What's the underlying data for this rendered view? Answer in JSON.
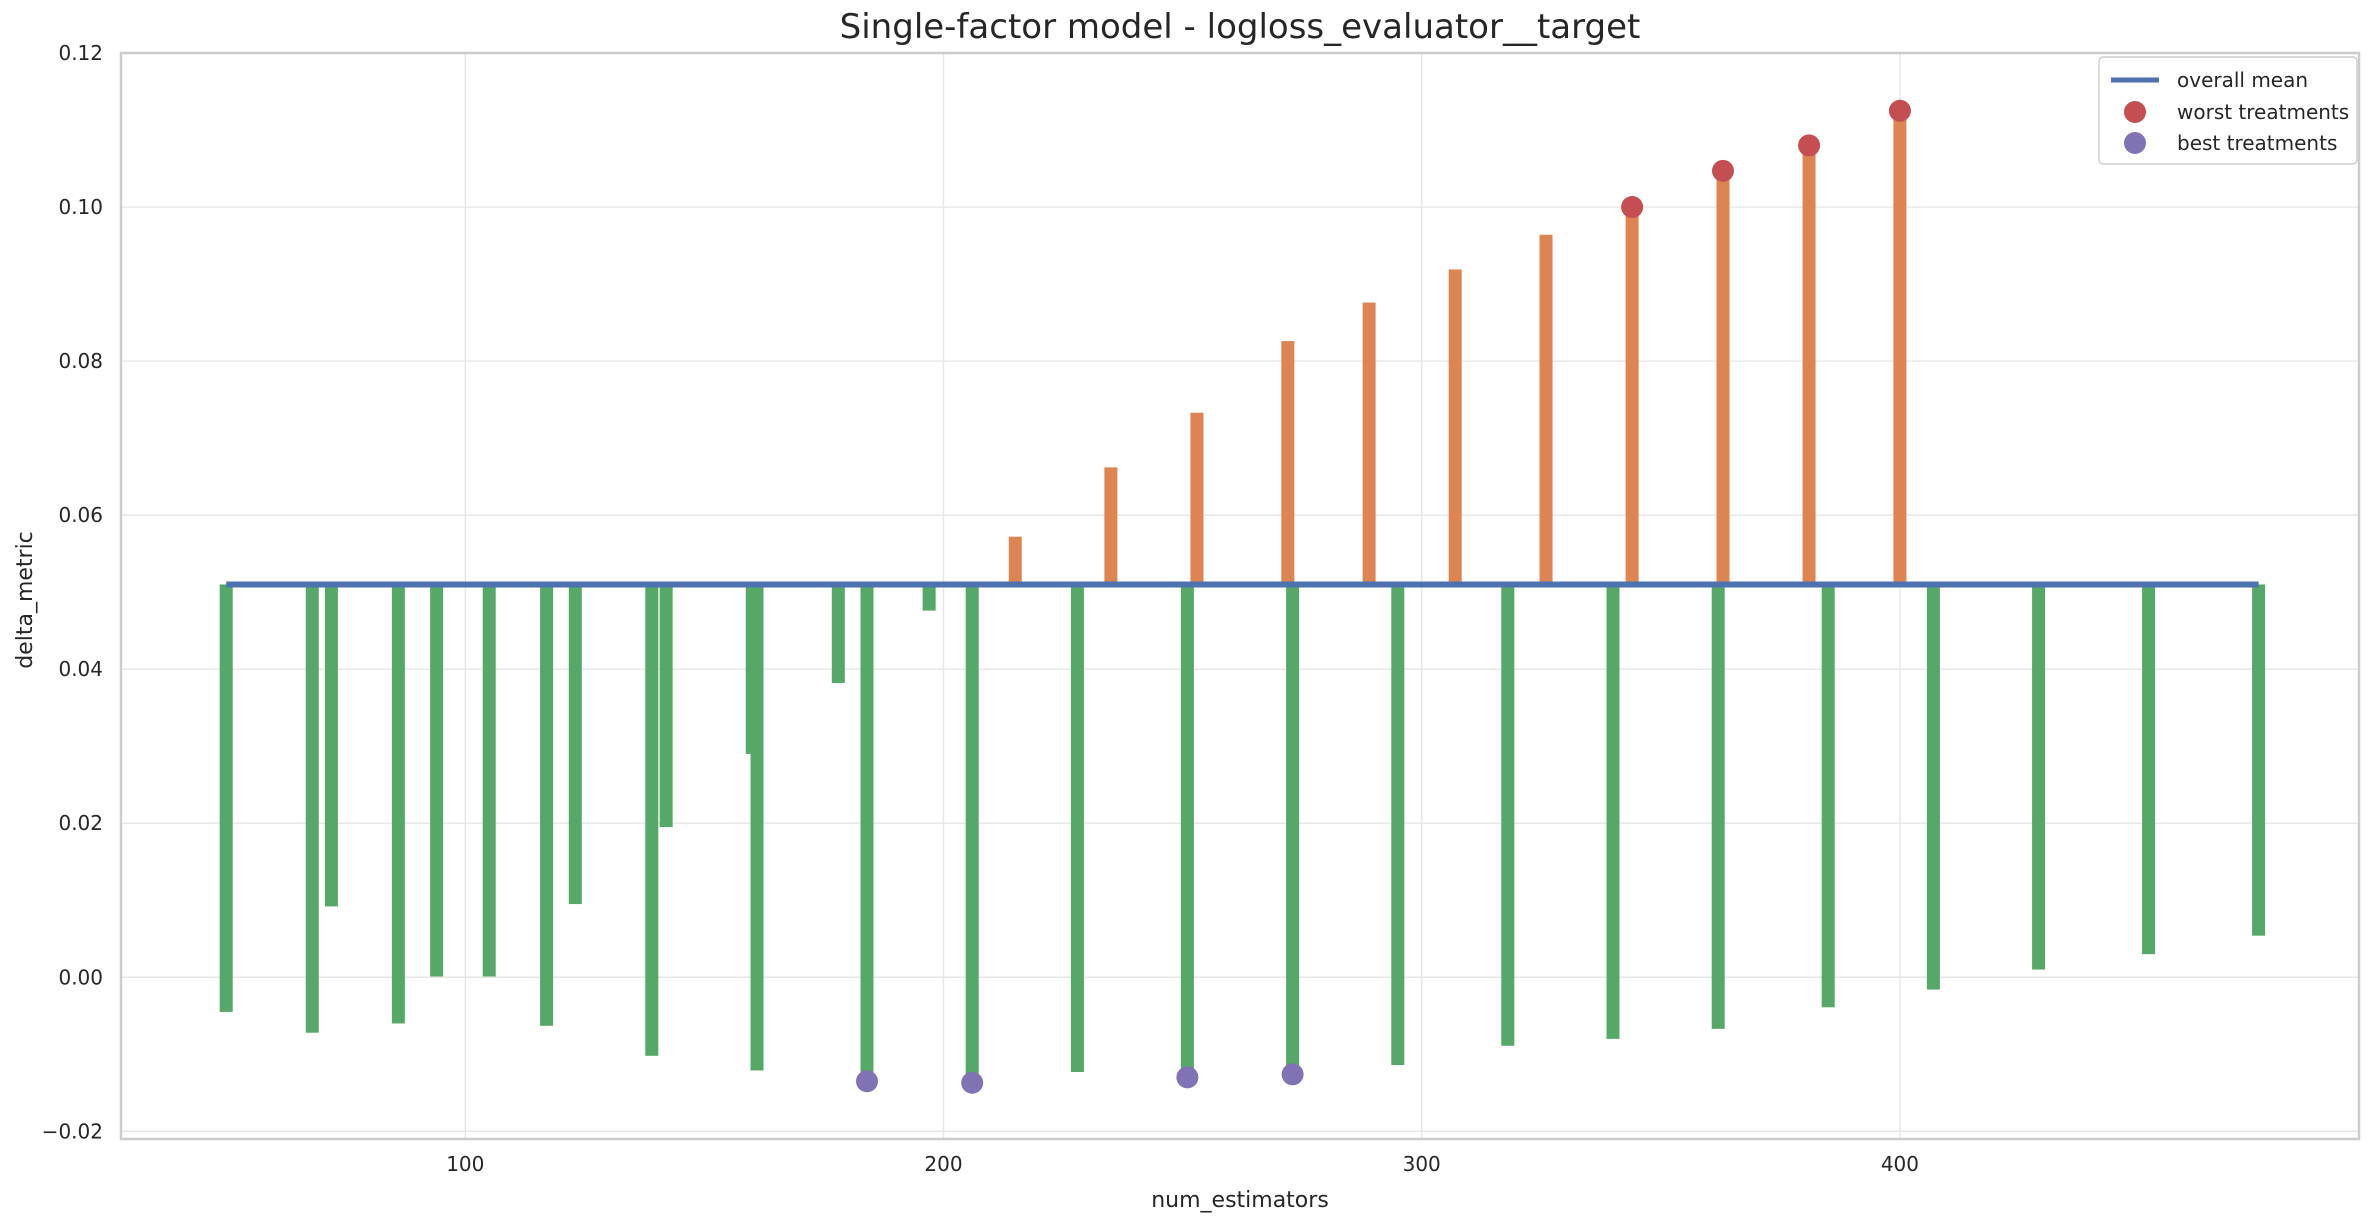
{
  "chart_data": {
    "type": "bar",
    "title": "Single-factor model - logloss_evaluator__target",
    "xlabel": "num_estimators",
    "ylabel": "delta_metric",
    "xlim": [
      28,
      496
    ],
    "ylim": [
      -0.021,
      0.12
    ],
    "xticks": [
      100,
      200,
      300,
      400
    ],
    "xtick_labels": [
      "100",
      "200",
      "300",
      "400"
    ],
    "yticks": [
      -0.02,
      0.0,
      0.02,
      0.04,
      0.06,
      0.08,
      0.1,
      0.12
    ],
    "ytick_labels": [
      "−0.02",
      "0.00",
      "0.02",
      "0.04",
      "0.06",
      "0.08",
      "0.10",
      "0.12"
    ],
    "grid": true,
    "legend_position": "top-right",
    "baseline": 0.051,
    "colors": {
      "mean_line": "#4c72b0",
      "above_bars": "#dd8452",
      "below_bars": "#55a868",
      "worst_markers": "#c44e52",
      "best_markers": "#8172b3"
    },
    "overall_mean": {
      "name": "overall mean",
      "x": [
        50,
        475
      ],
      "y": 0.051
    },
    "bars": [
      {
        "x": 50,
        "y": -0.0045
      },
      {
        "x": 68,
        "y": -0.0072
      },
      {
        "x": 72,
        "y": 0.0092
      },
      {
        "x": 86,
        "y": -0.006
      },
      {
        "x": 94,
        "y": 0.0001
      },
      {
        "x": 105,
        "y": 0.0001
      },
      {
        "x": 117,
        "y": -0.0063
      },
      {
        "x": 123,
        "y": 0.0095
      },
      {
        "x": 139,
        "y": -0.0102
      },
      {
        "x": 142,
        "y": 0.0195
      },
      {
        "x": 160,
        "y": 0.029
      },
      {
        "x": 161,
        "y": -0.0121
      },
      {
        "x": 178,
        "y": 0.0382
      },
      {
        "x": 184,
        "y": -0.0135
      },
      {
        "x": 197,
        "y": 0.0476
      },
      {
        "x": 206,
        "y": -0.0137
      },
      {
        "x": 215,
        "y": 0.0572
      },
      {
        "x": 228,
        "y": -0.0123
      },
      {
        "x": 235,
        "y": 0.0662
      },
      {
        "x": 251,
        "y": -0.013
      },
      {
        "x": 253,
        "y": 0.0733
      },
      {
        "x": 272,
        "y": 0.0826
      },
      {
        "x": 273,
        "y": -0.0126
      },
      {
        "x": 289,
        "y": 0.0876
      },
      {
        "x": 295,
        "y": -0.0114
      },
      {
        "x": 307,
        "y": 0.0919
      },
      {
        "x": 318,
        "y": -0.0089
      },
      {
        "x": 326,
        "y": 0.0964
      },
      {
        "x": 340,
        "y": -0.008
      },
      {
        "x": 344,
        "y": 0.1
      },
      {
        "x": 362,
        "y": -0.0067
      },
      {
        "x": 363,
        "y": 0.1047
      },
      {
        "x": 381,
        "y": 0.108
      },
      {
        "x": 385,
        "y": -0.0039
      },
      {
        "x": 400,
        "y": 0.1125
      },
      {
        "x": 407,
        "y": -0.0016
      },
      {
        "x": 429,
        "y": 0.001
      },
      {
        "x": 452,
        "y": 0.003
      },
      {
        "x": 475,
        "y": 0.0054
      }
    ],
    "worst_treatments": {
      "name": "worst treatments",
      "points": [
        {
          "x": 344,
          "y": 0.1
        },
        {
          "x": 363,
          "y": 0.1047
        },
        {
          "x": 381,
          "y": 0.108
        },
        {
          "x": 400,
          "y": 0.1125
        }
      ]
    },
    "best_treatments": {
      "name": "best treatments",
      "points": [
        {
          "x": 184,
          "y": -0.0135
        },
        {
          "x": 206,
          "y": -0.0137
        },
        {
          "x": 251,
          "y": -0.013
        },
        {
          "x": 273,
          "y": -0.0126
        }
      ]
    },
    "legend": [
      "overall mean",
      "worst treatments",
      "best treatments"
    ]
  }
}
